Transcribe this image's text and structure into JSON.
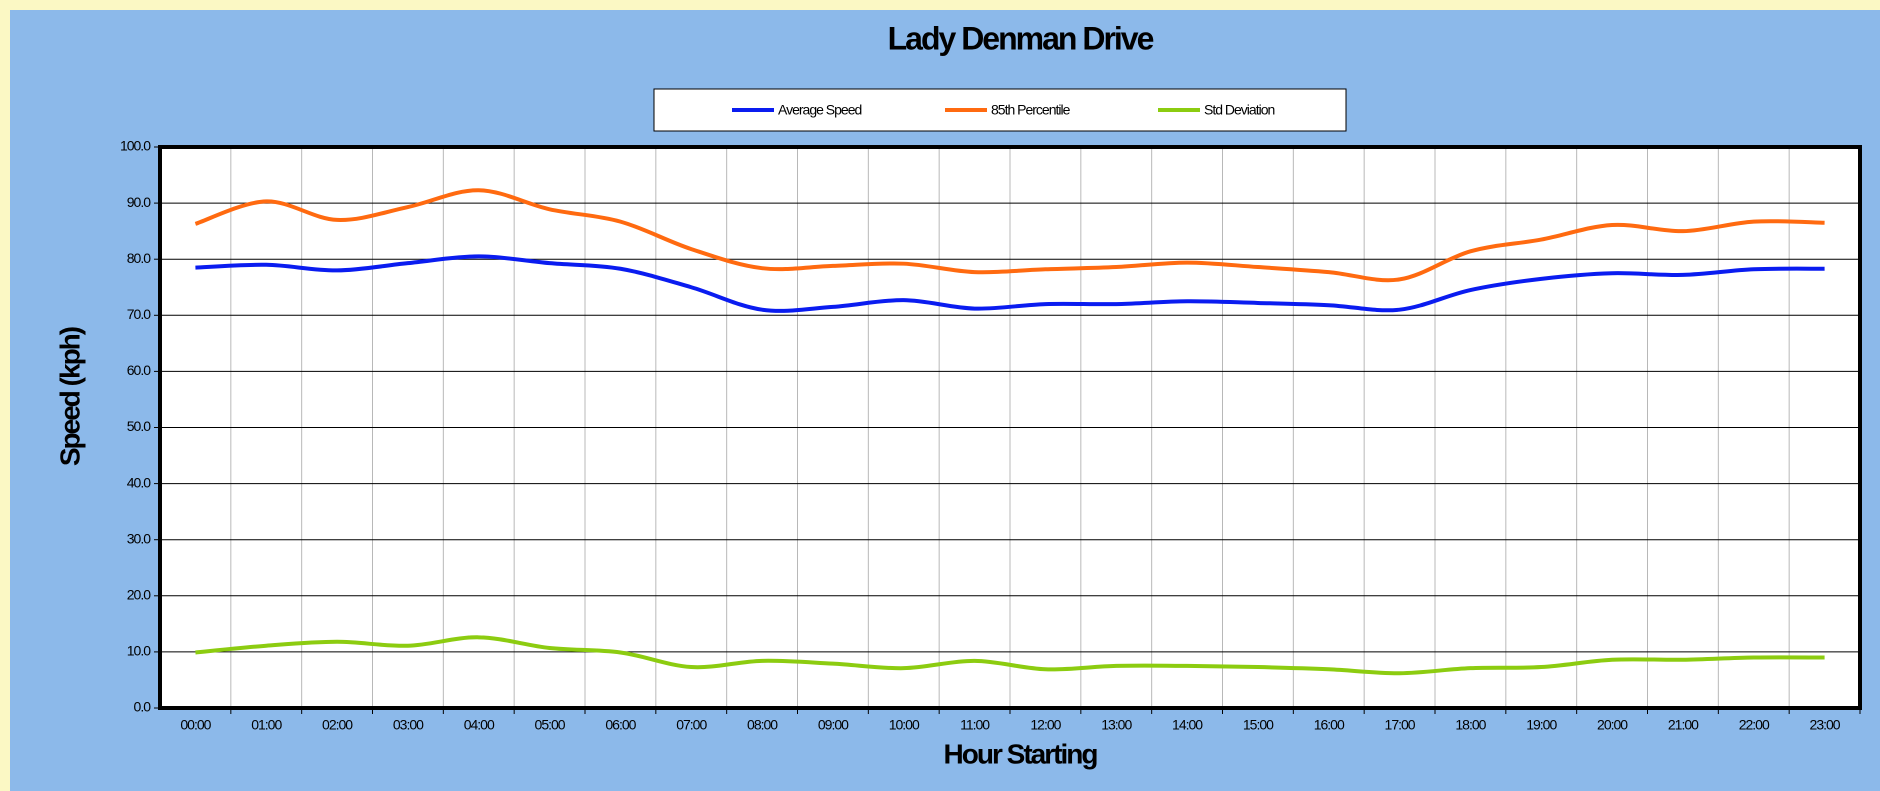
{
  "chart_data": {
    "type": "line",
    "title": "Lady Denman Drive",
    "x_label": "Hour Starting",
    "y_label": "Speed (kph)",
    "categories": [
      "00:00",
      "01:00",
      "02:00",
      "03:00",
      "04:00",
      "05:00",
      "06:00",
      "07:00",
      "08:00",
      "09:00",
      "10:00",
      "11:00",
      "12:00",
      "13:00",
      "14:00",
      "15:00",
      "16:00",
      "17:00",
      "18:00",
      "19:00",
      "20:00",
      "21:00",
      "22:00",
      "23:00"
    ],
    "series": [
      {
        "name": "Average Speed",
        "color": "#0a1cf0",
        "values": [
          78.5,
          79.0,
          78.0,
          79.3,
          80.5,
          79.3,
          78.3,
          75.0,
          71.0,
          71.5,
          72.7,
          71.2,
          72.0,
          72.0,
          72.5,
          72.2,
          71.8,
          71.0,
          74.5,
          76.5,
          77.5,
          77.2,
          78.2,
          78.3
        ]
      },
      {
        "name": "85th Percentile",
        "color": "#ff6a10",
        "values": [
          86.3,
          90.3,
          87.0,
          89.3,
          92.3,
          88.9,
          86.7,
          81.8,
          78.4,
          78.8,
          79.2,
          77.7,
          78.2,
          78.6,
          79.4,
          78.6,
          77.7,
          76.4,
          81.4,
          83.5,
          86.1,
          85.0,
          86.7,
          86.5
        ]
      },
      {
        "name": "Std Deviation",
        "color": "#8ccc10",
        "values": [
          9.9,
          11.1,
          11.8,
          11.1,
          12.6,
          10.7,
          9.9,
          7.3,
          8.4,
          7.9,
          7.1,
          8.4,
          6.9,
          7.5,
          7.5,
          7.3,
          6.9,
          6.2,
          7.1,
          7.3,
          8.6,
          8.6,
          9.0,
          9.0
        ]
      }
    ],
    "ylim": [
      0,
      100
    ],
    "yticks": [
      {
        "value": 0,
        "label": "0.0"
      },
      {
        "value": 10,
        "label": "10.0"
      },
      {
        "value": 20,
        "label": "20.0"
      },
      {
        "value": 30,
        "label": "30.0"
      },
      {
        "value": 40,
        "label": "40.0"
      },
      {
        "value": 50,
        "label": "50.0"
      },
      {
        "value": 60,
        "label": "60.0"
      },
      {
        "value": 70,
        "label": "70.0"
      },
      {
        "value": 80,
        "label": "80.0"
      },
      {
        "value": 90,
        "label": "90.0"
      },
      {
        "value": 100,
        "label": "100.0"
      }
    ],
    "grid": true,
    "legend": "top"
  }
}
